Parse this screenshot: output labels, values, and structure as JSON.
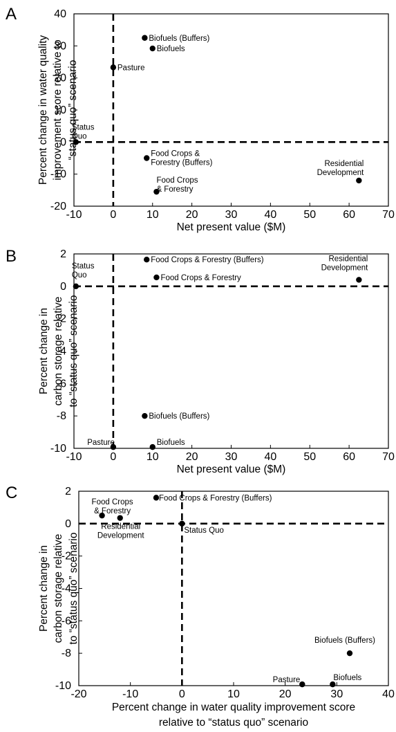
{
  "chart_data": [
    {
      "panel": "A",
      "type": "scatter",
      "xlabel": "Net present value ($M)",
      "ylabel": [
        "Percent change in water quality",
        "improvement score relative to",
        "“status quo” scenario"
      ],
      "xlim": [
        -10,
        70
      ],
      "ylim": [
        -20,
        40
      ],
      "xticks": [
        -10,
        0,
        10,
        20,
        30,
        40,
        50,
        60,
        70
      ],
      "yticks": [
        -20,
        -10,
        0,
        10,
        20,
        30,
        40
      ],
      "reference_lines": {
        "x": 0,
        "y": 0,
        "style": "dashed"
      },
      "grid": false,
      "points": [
        {
          "label": [
            "Biofuels (Buffers)"
          ],
          "x": 8,
          "y": 32.5
        },
        {
          "label": [
            "Biofuels"
          ],
          "x": 10,
          "y": 29.2
        },
        {
          "label": [
            "Pasture"
          ],
          "x": 0,
          "y": 23.3
        },
        {
          "label": [
            "Status",
            "Quo"
          ],
          "x": -9.5,
          "y": 0
        },
        {
          "label": [
            "Food Crops &",
            "Forestry (Buffers)"
          ],
          "x": 8.5,
          "y": -5
        },
        {
          "label": [
            "Food Crops",
            "& Forestry"
          ],
          "x": 11,
          "y": -15.5
        },
        {
          "label": [
            "Residential",
            "Development"
          ],
          "x": 62.5,
          "y": -12
        }
      ]
    },
    {
      "panel": "B",
      "type": "scatter",
      "xlabel": "Net present value ($M)",
      "ylabel": [
        "Percent change in",
        "carbon storage relative",
        "to “status quo” scenario"
      ],
      "xlim": [
        -10,
        70
      ],
      "ylim": [
        -10,
        2
      ],
      "xticks": [
        -10,
        0,
        10,
        20,
        30,
        40,
        50,
        60,
        70
      ],
      "yticks": [
        -10,
        -8,
        -6,
        -4,
        -2,
        0,
        2
      ],
      "reference_lines": {
        "x": 0,
        "y": 0,
        "style": "dashed"
      },
      "grid": false,
      "points": [
        {
          "label": [
            "Food Crops & Forestry (Buffers)"
          ],
          "x": 8.5,
          "y": 1.65
        },
        {
          "label": [
            "Food Crops & Forestry"
          ],
          "x": 11,
          "y": 0.55
        },
        {
          "label": [
            "Status",
            "Quo"
          ],
          "x": -9.5,
          "y": 0
        },
        {
          "label": [
            "Residential",
            "Development"
          ],
          "x": 62.5,
          "y": 0.4
        },
        {
          "label": [
            "Biofuels (Buffers)"
          ],
          "x": 8,
          "y": -8
        },
        {
          "label": [
            "Pasture"
          ],
          "x": 0,
          "y": -9.92
        },
        {
          "label": [
            "Biofuels"
          ],
          "x": 10,
          "y": -9.92
        }
      ]
    },
    {
      "panel": "C",
      "type": "scatter",
      "xlabel": [
        "Percent change in water quality improvement score",
        "relative to “status quo” scenario"
      ],
      "ylabel": [
        "Percent change in",
        "carbon storage relative",
        "to “status quo” scenario"
      ],
      "xlim": [
        -20,
        40
      ],
      "ylim": [
        -10,
        2
      ],
      "xticks": [
        -20,
        -10,
        0,
        10,
        20,
        30,
        40
      ],
      "yticks": [
        -10,
        -8,
        -6,
        -4,
        -2,
        0,
        2
      ],
      "reference_lines": {
        "x": 0,
        "y": 0,
        "style": "dashed"
      },
      "grid": false,
      "points": [
        {
          "label": [
            "Food Crops",
            "& Forestry"
          ],
          "x": -15.5,
          "y": 0.5
        },
        {
          "label": [
            "Residential",
            "Development"
          ],
          "x": -12,
          "y": 0.35
        },
        {
          "label": [
            "Food Crops & Forestry (Buffers)"
          ],
          "x": -5,
          "y": 1.6
        },
        {
          "label": [
            "Status Quo"
          ],
          "x": 0,
          "y": 0
        },
        {
          "label": [
            "Biofuels (Buffers)"
          ],
          "x": 32.5,
          "y": -8
        },
        {
          "label": [
            "Pasture"
          ],
          "x": 23.3,
          "y": -9.92
        },
        {
          "label": [
            "Biofuels"
          ],
          "x": 29.2,
          "y": -9.92
        }
      ]
    }
  ]
}
